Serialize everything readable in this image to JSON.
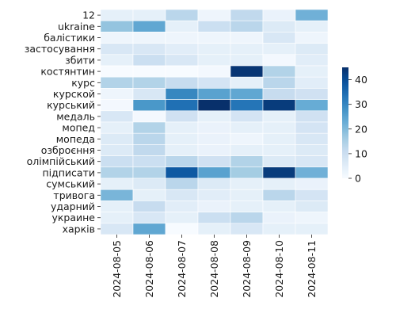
{
  "chart_data": {
    "type": "heatmap",
    "title": "",
    "xlabel": "",
    "ylabel": "",
    "x": [
      "2024-08-05",
      "2024-08-06",
      "2024-08-07",
      "2024-08-08",
      "2024-08-09",
      "2024-08-10",
      "2024-08-11"
    ],
    "y": [
      "12",
      "ukraine",
      "балістики",
      "застосування",
      "збити",
      "костянтин",
      "курс",
      "курской",
      "курський",
      "медаль",
      "мопед",
      "мопеда",
      "озброєння",
      "олімпійський",
      "підписати",
      "сумський",
      "тривога",
      "ударний",
      "украине",
      "харків"
    ],
    "values": [
      [
        4,
        4,
        13,
        2,
        12,
        3,
        22
      ],
      [
        18,
        24,
        4,
        10,
        13,
        6,
        4
      ],
      [
        2,
        2,
        2,
        2,
        2,
        7,
        2
      ],
      [
        7,
        7,
        5,
        4,
        4,
        4,
        6
      ],
      [
        4,
        10,
        7,
        4,
        4,
        1,
        5
      ],
      [
        0,
        0,
        0,
        1,
        44,
        14,
        4
      ],
      [
        14,
        14,
        11,
        8,
        4,
        13,
        5
      ],
      [
        2,
        7,
        30,
        25,
        24,
        11,
        9
      ],
      [
        1,
        27,
        34,
        45,
        33,
        43,
        23
      ],
      [
        7,
        1,
        9,
        4,
        8,
        4,
        9
      ],
      [
        4,
        14,
        4,
        3,
        4,
        4,
        8
      ],
      [
        6,
        13,
        4,
        3,
        2,
        4,
        7
      ],
      [
        6,
        12,
        4,
        3,
        4,
        4,
        6
      ],
      [
        10,
        10,
        13,
        9,
        14,
        6,
        7
      ],
      [
        14,
        14,
        38,
        25,
        16,
        43,
        22
      ],
      [
        4,
        6,
        13,
        6,
        4,
        4,
        3
      ],
      [
        21,
        4,
        7,
        5,
        4,
        13,
        8
      ],
      [
        4,
        11,
        5,
        3,
        4,
        4,
        6
      ],
      [
        4,
        7,
        4,
        10,
        13,
        3,
        2
      ],
      [
        7,
        24,
        0,
        4,
        7,
        4,
        4
      ]
    ],
    "colorbar": {
      "min": 0,
      "max": 45,
      "ticks": [
        0,
        10,
        20,
        30,
        40
      ]
    },
    "colormap": [
      "#f7fbff",
      "#deebf7",
      "#c6dbef",
      "#9ecae1",
      "#6baed6",
      "#4292c6",
      "#2171b5",
      "#08519c",
      "#08306b"
    ],
    "cell_border_color": "#ffffff",
    "grid": false
  }
}
